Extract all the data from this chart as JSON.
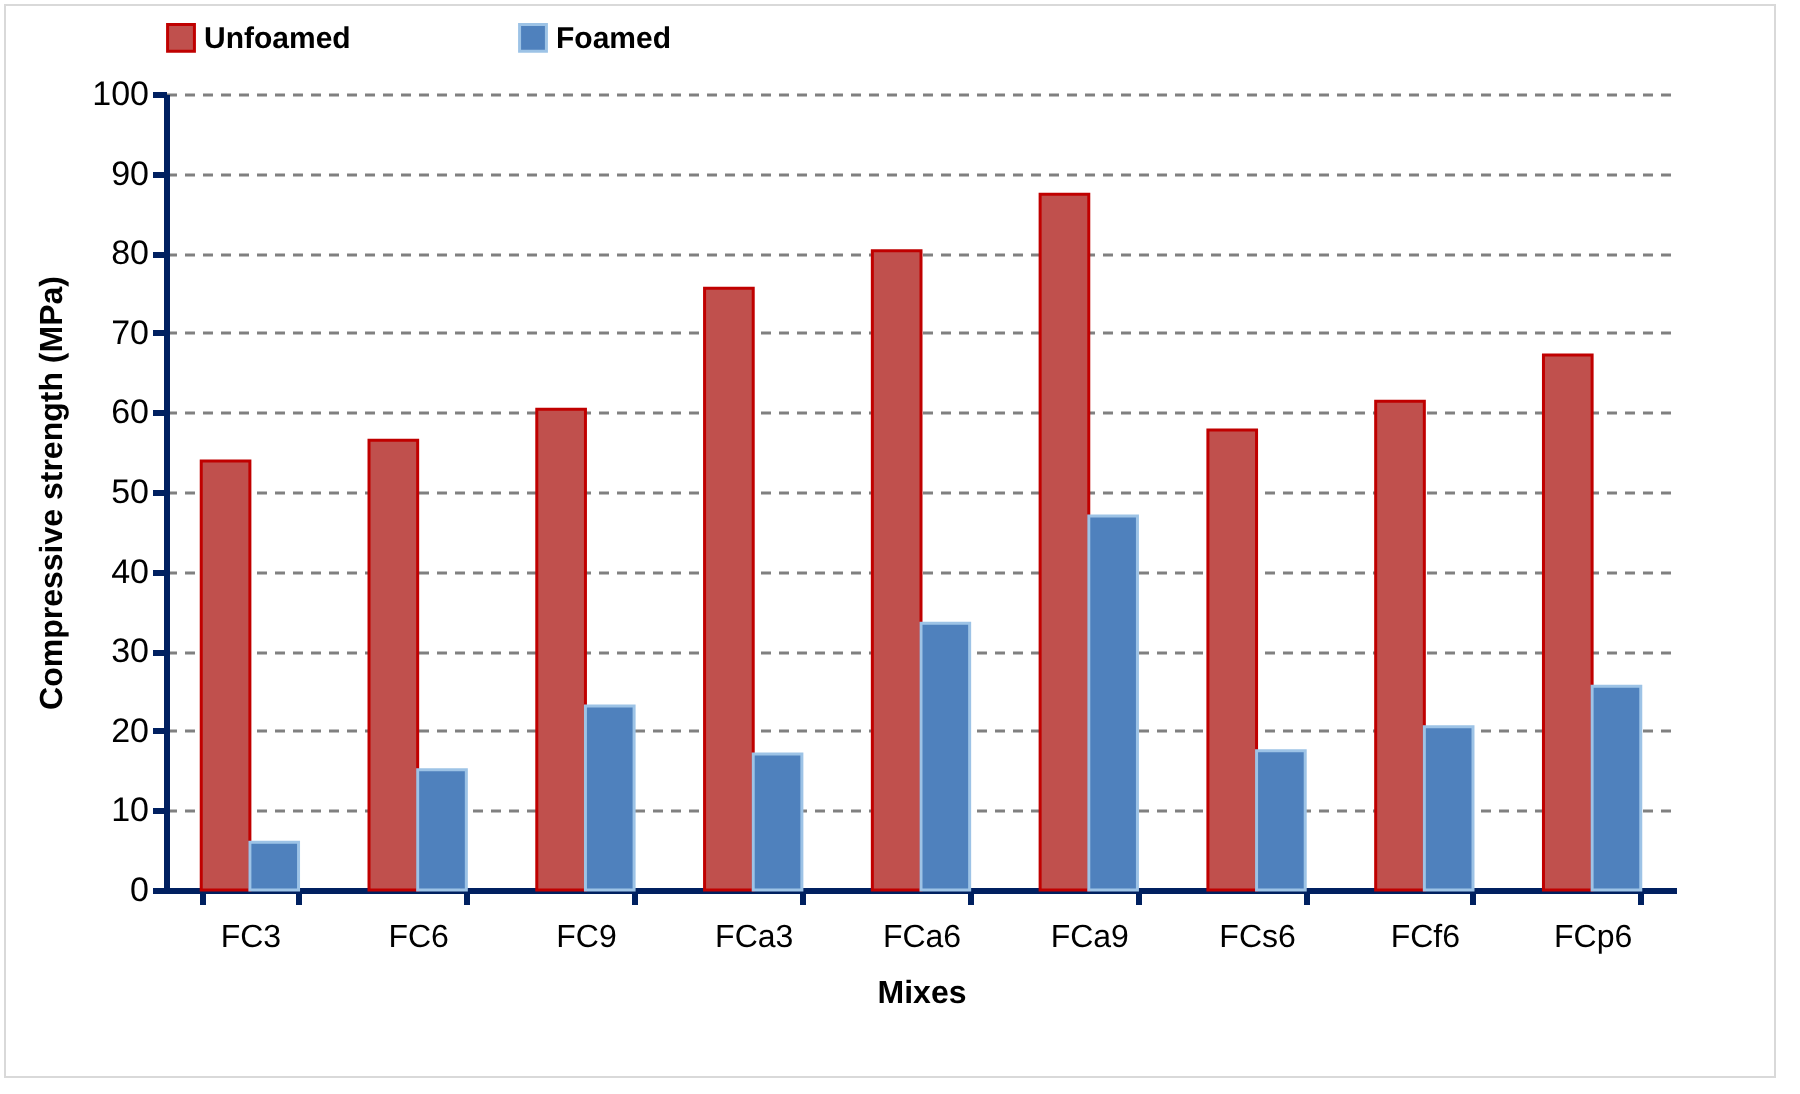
{
  "chart_data": {
    "type": "bar",
    "xlabel": "Mixes",
    "ylabel": "Compressive strength (MPa)",
    "categories": [
      "FC3",
      "FC6",
      "FC9",
      "FCa3",
      "FCa6",
      "FCa9",
      "FCs6",
      "FCf6",
      "FCp6"
    ],
    "series": [
      {
        "name": "Unfoamed",
        "color": "#c0504d",
        "values": [
          53.9,
          56.5,
          60.4,
          75.6,
          80.3,
          87.4,
          57.8,
          61.4,
          67.2
        ]
      },
      {
        "name": "Foamed",
        "color": "#4f81bd",
        "values": [
          6.0,
          15.1,
          23.1,
          17.1,
          33.5,
          47.0,
          17.5,
          20.5,
          25.6
        ]
      }
    ],
    "ylim": [
      0,
      100
    ],
    "yticks": [
      0,
      10,
      20,
      30,
      40,
      50,
      60,
      70,
      80,
      90,
      100
    ],
    "grid": "y",
    "legend": "top"
  }
}
